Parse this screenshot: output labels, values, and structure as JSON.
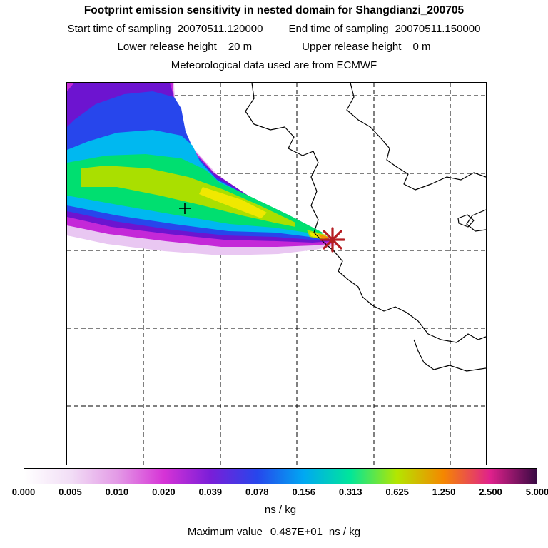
{
  "header": {
    "title": "Footprint emission sensitivity in nested domain for Shangdianzi_200705",
    "start_time_label": "Start time of sampling",
    "start_time_value": "20070511.120000",
    "end_time_label": "End time of sampling",
    "end_time_value": "20070511.150000",
    "lower_release_label": "Lower release height",
    "lower_release_value": "20 m",
    "upper_release_label": "Upper release height",
    "upper_release_value": "0 m",
    "met_line": "Meteorological data used are from ECMWF"
  },
  "chart_data": {
    "type": "heatmap",
    "title": "Footprint emission sensitivity in nested domain for Shangdianzi_200705",
    "station": "Shangdianzi_200705",
    "sampling_start": "20070511.120000",
    "sampling_end": "20070511.150000",
    "lower_release_height_m": 20,
    "upper_release_height_m": 0,
    "met_data_source": "ECMWF",
    "unit": "ns / kg",
    "colorbar": {
      "orientation": "horizontal",
      "tick_labels": [
        "0.000",
        "0.005",
        "0.010",
        "0.020",
        "0.039",
        "0.078",
        "0.156",
        "0.313",
        "0.625",
        "1.250",
        "2.500",
        "5.000"
      ],
      "tick_values": [
        0.0,
        0.005,
        0.01,
        0.02,
        0.039,
        0.078,
        0.156,
        0.313,
        0.625,
        1.25,
        2.5,
        5.0
      ],
      "stop_colors": [
        "#ffffff",
        "#f2def6",
        "#e39ae6",
        "#d633d6",
        "#7a1ed8",
        "#2746ec",
        "#00a8f2",
        "#00e69a",
        "#b4e600",
        "#f58700",
        "#e0218c",
        "#3a0a44"
      ],
      "unit": "ns / kg"
    },
    "plume_colors": [
      "#e9c7f2",
      "#c428d8",
      "#6d14d0",
      "#2746ec",
      "#00b8f0",
      "#00df70",
      "#aadf00",
      "#f0e800",
      "#f59000"
    ],
    "source_marker": {
      "symbol": "asterisk",
      "color": "#b51d22"
    },
    "reference_marker": {
      "symbol": "plus",
      "color": "#000000"
    },
    "grid": {
      "style": "dashed",
      "vertical_lines": 5,
      "horizontal_lines": 5
    },
    "max_value_label": "Maximum value",
    "max_value": "0.487E+01",
    "max_value_unit": "ns / kg"
  }
}
